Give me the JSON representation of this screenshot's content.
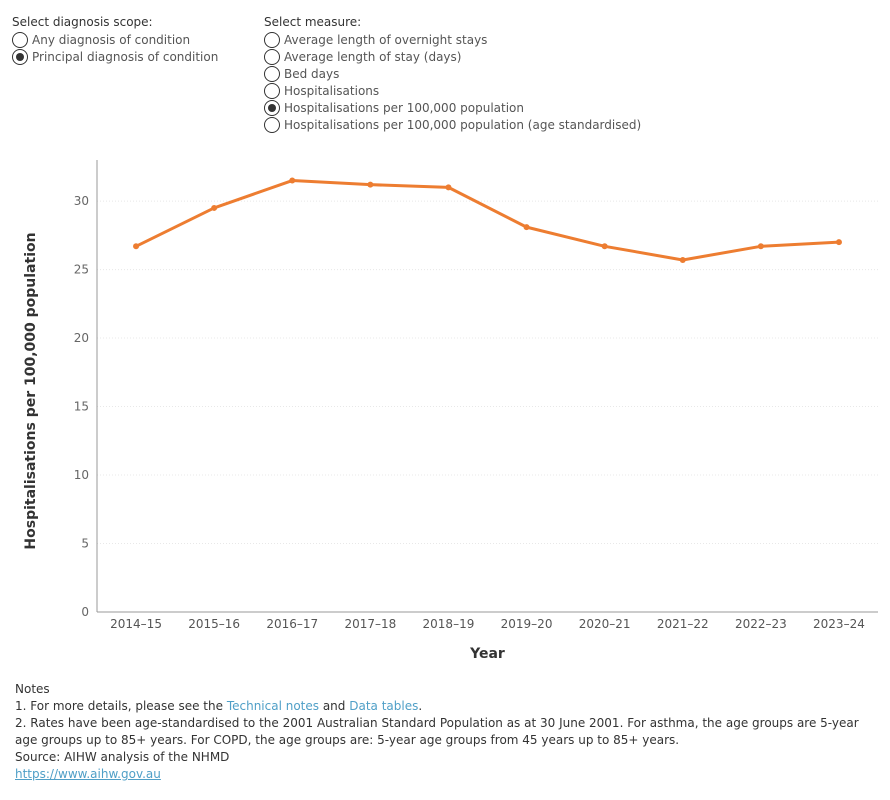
{
  "controls": {
    "scope": {
      "title": "Select diagnosis scope:",
      "options": [
        "Any diagnosis of condition",
        "Principal diagnosis of condition"
      ],
      "selected_index": 1
    },
    "measure": {
      "title": "Select measure:",
      "options": [
        "Average length of overnight stays",
        "Average length of stay (days)",
        "Bed days",
        "Hospitalisations",
        "Hospitalisations per 100,000 population",
        "Hospitalisations per 100,000 population (age standardised)"
      ],
      "selected_index": 4
    }
  },
  "chart_data": {
    "type": "line",
    "title": "",
    "xlabel": "Year",
    "ylabel": "Hospitalisations per 100,000 population",
    "categories": [
      "2014–15",
      "2015–16",
      "2016–17",
      "2017–18",
      "2018–19",
      "2019–20",
      "2020–21",
      "2021–22",
      "2022–23",
      "2023–24"
    ],
    "series": [
      {
        "values": [
          26.7,
          29.5,
          31.5,
          31.2,
          31.0,
          28.1,
          26.7,
          25.7,
          26.7,
          27.0
        ]
      }
    ],
    "ylim": [
      0,
      33
    ],
    "yticks": [
      0,
      5,
      10,
      15,
      20,
      25,
      30
    ],
    "grid": true,
    "line_color": "#ed7d31"
  },
  "notes": {
    "heading": "Notes",
    "line1_prefix": "1. For more details, please see the ",
    "technical_notes_link": "Technical notes",
    "line1_and": " and ",
    "data_tables_link": "Data tables",
    "line1_suffix": ".",
    "line2": "2. Rates have been age-standardised to the 2001 Australian Standard Population as at 30 June 2001. For asthma, the age groups are 5-year age groups up to 85+ years.  For COPD, the age groups are: 5-year age groups from 45 years up to 85+ years.",
    "source": "Source: AIHW analysis of the NHMD",
    "url": "https://www.aihw.gov.au"
  }
}
